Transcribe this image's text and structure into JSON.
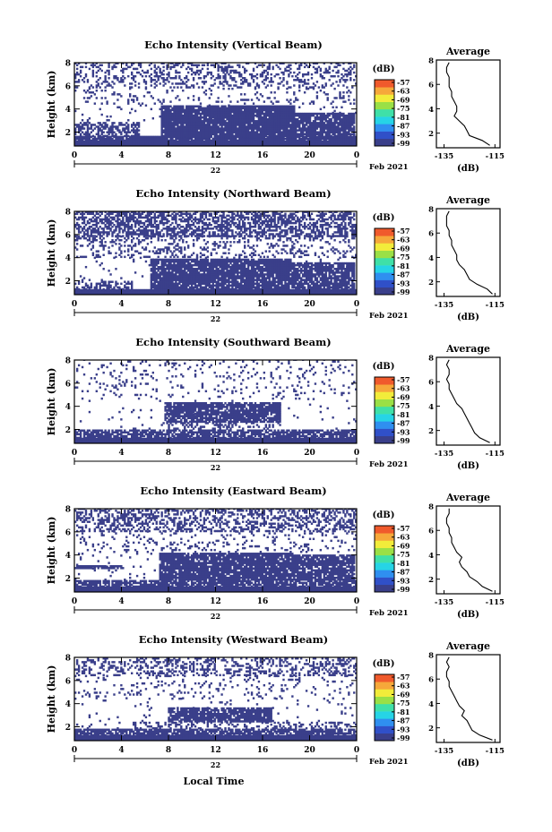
{
  "figure": {
    "xlabel": "Local Time",
    "date_label": "Feb 2021",
    "day_label": "22"
  },
  "palette": {
    "bands": [
      "#3a3f8a",
      "#3050c8",
      "#2f8ff0",
      "#26d4e6",
      "#3fe0a8",
      "#9ae046",
      "#f2ec3a",
      "#f6a83a",
      "#f05a2c"
    ],
    "background": "#ffffff",
    "frame": "#000000"
  },
  "chart_data": [
    {
      "type": "heatmap",
      "title": "Echo Intensity (Vertical Beam)",
      "ylabel": "Height (km)",
      "x_ticks": [
        "0",
        "4",
        "8",
        "12",
        "16",
        "20",
        "0"
      ],
      "y_ticks": [
        "2",
        "4",
        "6",
        "8"
      ],
      "xlim": [
        0,
        24
      ],
      "ylim": [
        0.8,
        8
      ],
      "colorbar": {
        "label": "(dB)",
        "ticks": [
          "-57",
          "-63",
          "-69",
          "-75",
          "-81",
          "-87",
          "-93",
          "-99"
        ]
      },
      "profile": {
        "title": "Average",
        "xlabel": "(dB)",
        "x_ticks": [
          "-135",
          "-115"
        ],
        "y_ticks": [
          "2",
          "4",
          "6",
          "8"
        ],
        "x": [
          -135,
          -115
        ],
        "ylim": [
          0.8,
          8
        ],
        "heights": [
          1,
          1.4,
          1.8,
          2.2,
          2.6,
          3,
          3.4,
          3.8,
          4.2,
          4.6,
          5,
          5.4,
          5.8,
          6.2,
          6.6,
          7,
          7.4,
          7.8
        ],
        "values": [
          -117,
          -120,
          -125,
          -126,
          -127,
          -129,
          -131,
          -130,
          -130,
          -131,
          -132,
          -132,
          -133,
          -133,
          -133,
          -134,
          -134,
          -133
        ]
      },
      "layers": [
        {
          "from": 0.8,
          "to": 1.2,
          "t0": 0,
          "t1": 24,
          "density": 1.0
        },
        {
          "from": 1.2,
          "to": 1.6,
          "t0": 0,
          "t1": 6,
          "density": 0.9
        },
        {
          "from": 1.2,
          "to": 1.6,
          "t0": 6,
          "t1": 24,
          "density": 0.95
        },
        {
          "from": 1.6,
          "to": 2.8,
          "t0": 0,
          "t1": 5.5,
          "density": 0.6
        },
        {
          "from": 1.6,
          "to": 4.2,
          "t0": 7.3,
          "t1": 18.8,
          "density": 0.95
        },
        {
          "from": 1.6,
          "to": 3.6,
          "t0": 18.8,
          "t1": 23.8,
          "density": 0.9
        },
        {
          "from": 2.8,
          "to": 4.4,
          "t0": 0,
          "t1": 24,
          "density": 0.05
        },
        {
          "from": 4.4,
          "to": 5.8,
          "t0": 0,
          "t1": 24,
          "density": 0.12
        },
        {
          "from": 5.8,
          "to": 8.0,
          "t0": 0,
          "t1": 24,
          "density": 0.3
        }
      ]
    },
    {
      "type": "heatmap",
      "title": "Echo Intensity (Northward Beam)",
      "ylabel": "Height (km)",
      "x_ticks": [
        "0",
        "4",
        "8",
        "12",
        "16",
        "20",
        "0"
      ],
      "y_ticks": [
        "2",
        "4",
        "6",
        "8"
      ],
      "xlim": [
        0,
        24
      ],
      "ylim": [
        0.8,
        8
      ],
      "colorbar": {
        "label": "(dB)",
        "ticks": [
          "-57",
          "-63",
          "-69",
          "-75",
          "-81",
          "-87",
          "-93",
          "-99"
        ]
      },
      "profile": {
        "title": "Average",
        "xlabel": "(dB)",
        "x_ticks": [
          "-135",
          "-115"
        ],
        "y_ticks": [
          "2",
          "4",
          "6",
          "8"
        ],
        "x": [
          -135,
          -115
        ],
        "ylim": [
          0.8,
          8
        ],
        "heights": [
          1,
          1.4,
          1.8,
          2.2,
          2.6,
          3,
          3.4,
          3.8,
          4.2,
          4.6,
          5,
          5.4,
          5.8,
          6.2,
          6.6,
          7,
          7.4,
          7.8
        ],
        "values": [
          -116,
          -118,
          -122,
          -125,
          -126,
          -127,
          -129,
          -130,
          -130,
          -131,
          -132,
          -132,
          -133,
          -133,
          -134,
          -134,
          -134,
          -133
        ]
      },
      "layers": [
        {
          "from": 0.8,
          "to": 1.2,
          "t0": 0,
          "t1": 24,
          "density": 1.0
        },
        {
          "from": 1.2,
          "to": 2.0,
          "t0": 0,
          "t1": 5,
          "density": 0.5
        },
        {
          "from": 1.2,
          "to": 3.8,
          "t0": 6.5,
          "t1": 18.5,
          "density": 0.9
        },
        {
          "from": 1.2,
          "to": 3.6,
          "t0": 18.5,
          "t1": 23.8,
          "density": 0.85
        },
        {
          "from": 2.0,
          "to": 4.0,
          "t0": 0,
          "t1": 24,
          "density": 0.06
        },
        {
          "from": 4.0,
          "to": 5.8,
          "t0": 0,
          "t1": 24,
          "density": 0.25
        },
        {
          "from": 5.8,
          "to": 8.0,
          "t0": 0,
          "t1": 24,
          "density": 0.6
        }
      ]
    },
    {
      "type": "heatmap",
      "title": "Echo Intensity (Southward Beam)",
      "ylabel": "Height (km)",
      "x_ticks": [
        "0",
        "4",
        "8",
        "12",
        "16",
        "20",
        "0"
      ],
      "y_ticks": [
        "2",
        "4",
        "6",
        "8"
      ],
      "xlim": [
        0,
        24
      ],
      "ylim": [
        0.8,
        8
      ],
      "colorbar": {
        "label": "(dB)",
        "ticks": [
          "-57",
          "-63",
          "-69",
          "-75",
          "-81",
          "-87",
          "-93",
          "-99"
        ]
      },
      "profile": {
        "title": "Average",
        "xlabel": "(dB)",
        "x_ticks": [
          "-135",
          "-115"
        ],
        "y_ticks": [
          "2",
          "4",
          "6",
          "8"
        ],
        "x": [
          -135,
          -115
        ],
        "ylim": [
          0.8,
          8
        ],
        "heights": [
          1,
          1.4,
          1.8,
          2.2,
          2.6,
          3,
          3.4,
          3.8,
          4.2,
          4.6,
          5,
          5.4,
          5.8,
          6.2,
          6.6,
          7,
          7.4,
          7.8
        ],
        "values": [
          -117,
          -121,
          -123,
          -124,
          -125,
          -126,
          -127,
          -128,
          -130,
          -131,
          -132,
          -133,
          -133,
          -134,
          -133,
          -133,
          -134,
          -133
        ]
      },
      "layers": [
        {
          "from": 0.8,
          "to": 1.2,
          "t0": 0,
          "t1": 24,
          "density": 1.0
        },
        {
          "from": 1.2,
          "to": 2.0,
          "t0": 0,
          "t1": 24,
          "density": 0.75
        },
        {
          "from": 2.6,
          "to": 4.3,
          "t0": 7.6,
          "t1": 17.5,
          "density": 0.85
        },
        {
          "from": 2.0,
          "to": 2.6,
          "t0": 7.6,
          "t1": 17.5,
          "density": 0.3
        },
        {
          "from": 2.0,
          "to": 4.6,
          "t0": 0,
          "t1": 24,
          "density": 0.03
        },
        {
          "from": 4.6,
          "to": 8.0,
          "t0": 0,
          "t1": 24,
          "density": 0.08
        }
      ]
    },
    {
      "type": "heatmap",
      "title": "Echo Intensity (Eastward Beam)",
      "ylabel": "Height (km)",
      "x_ticks": [
        "0",
        "4",
        "8",
        "12",
        "16",
        "20",
        "0"
      ],
      "y_ticks": [
        "2",
        "4",
        "6",
        "8"
      ],
      "xlim": [
        0,
        24
      ],
      "ylim": [
        0.8,
        8
      ],
      "colorbar": {
        "label": "(dB)",
        "ticks": [
          "-57",
          "-63",
          "-69",
          "-75",
          "-81",
          "-87",
          "-93",
          "-99"
        ]
      },
      "profile": {
        "title": "Average",
        "xlabel": "(dB)",
        "x_ticks": [
          "-135",
          "-115"
        ],
        "y_ticks": [
          "2",
          "4",
          "6",
          "8"
        ],
        "x": [
          -135,
          -115
        ],
        "ylim": [
          0.8,
          8
        ],
        "heights": [
          1,
          1.4,
          1.8,
          2.2,
          2.6,
          3,
          3.4,
          3.8,
          4.2,
          4.6,
          5,
          5.4,
          5.8,
          6.2,
          6.6,
          7,
          7.4,
          7.8
        ],
        "values": [
          -116,
          -120,
          -122,
          -125,
          -126,
          -128,
          -129,
          -128,
          -130,
          -131,
          -132,
          -132,
          -133,
          -133,
          -134,
          -134,
          -133,
          -133
        ]
      },
      "layers": [
        {
          "from": 0.8,
          "to": 1.2,
          "t0": 0,
          "t1": 24,
          "density": 1.0
        },
        {
          "from": 1.2,
          "to": 1.8,
          "t0": 0,
          "t1": 24,
          "density": 0.8
        },
        {
          "from": 1.8,
          "to": 4.2,
          "t0": 7.2,
          "t1": 18.6,
          "density": 0.9
        },
        {
          "from": 1.8,
          "to": 4.0,
          "t0": 18.6,
          "t1": 23.8,
          "density": 0.85
        },
        {
          "from": 2.8,
          "to": 3.0,
          "t0": 0,
          "t1": 4.2,
          "density": 0.8
        },
        {
          "from": 1.8,
          "to": 4.2,
          "t0": 0,
          "t1": 7.2,
          "density": 0.05
        },
        {
          "from": 4.2,
          "to": 6.0,
          "t0": 0,
          "t1": 24,
          "density": 0.12
        },
        {
          "from": 6.0,
          "to": 8.0,
          "t0": 0,
          "t1": 24,
          "density": 0.4
        }
      ]
    },
    {
      "type": "heatmap",
      "title": "Echo Intensity (Westward Beam)",
      "ylabel": "Height (km)",
      "x_ticks": [
        "0",
        "4",
        "8",
        "12",
        "16",
        "20",
        "0"
      ],
      "y_ticks": [
        "2",
        "4",
        "6",
        "8"
      ],
      "xlim": [
        0,
        24
      ],
      "ylim": [
        0.8,
        8
      ],
      "colorbar": {
        "label": "(dB)",
        "ticks": [
          "-57",
          "-63",
          "-69",
          "-75",
          "-81",
          "-87",
          "-93",
          "-99"
        ]
      },
      "profile": {
        "title": "Average",
        "xlabel": "(dB)",
        "x_ticks": [
          "-135",
          "-115"
        ],
        "y_ticks": [
          "2",
          "4",
          "6",
          "8"
        ],
        "x": [
          -135,
          -115
        ],
        "ylim": [
          0.8,
          8
        ],
        "heights": [
          1,
          1.4,
          1.8,
          2.2,
          2.6,
          3,
          3.4,
          3.8,
          4.2,
          4.6,
          5,
          5.4,
          5.8,
          6.2,
          6.6,
          7,
          7.4,
          7.8
        ],
        "values": [
          -116,
          -121,
          -124,
          -125,
          -126,
          -128,
          -127,
          -129,
          -130,
          -131,
          -132,
          -133,
          -133,
          -134,
          -134,
          -133,
          -134,
          -133
        ]
      },
      "layers": [
        {
          "from": 0.8,
          "to": 1.2,
          "t0": 0,
          "t1": 24,
          "density": 1.0
        },
        {
          "from": 1.2,
          "to": 1.8,
          "t0": 0,
          "t1": 24,
          "density": 0.8
        },
        {
          "from": 2.4,
          "to": 3.6,
          "t0": 8.0,
          "t1": 16.8,
          "density": 0.85
        },
        {
          "from": 1.8,
          "to": 2.4,
          "t0": 5.0,
          "t1": 24,
          "density": 0.25
        },
        {
          "from": 1.8,
          "to": 4.4,
          "t0": 0,
          "t1": 24,
          "density": 0.04
        },
        {
          "from": 4.4,
          "to": 6.4,
          "t0": 0,
          "t1": 24,
          "density": 0.1
        },
        {
          "from": 6.4,
          "to": 8.0,
          "t0": 0,
          "t1": 24,
          "density": 0.35
        }
      ]
    }
  ]
}
